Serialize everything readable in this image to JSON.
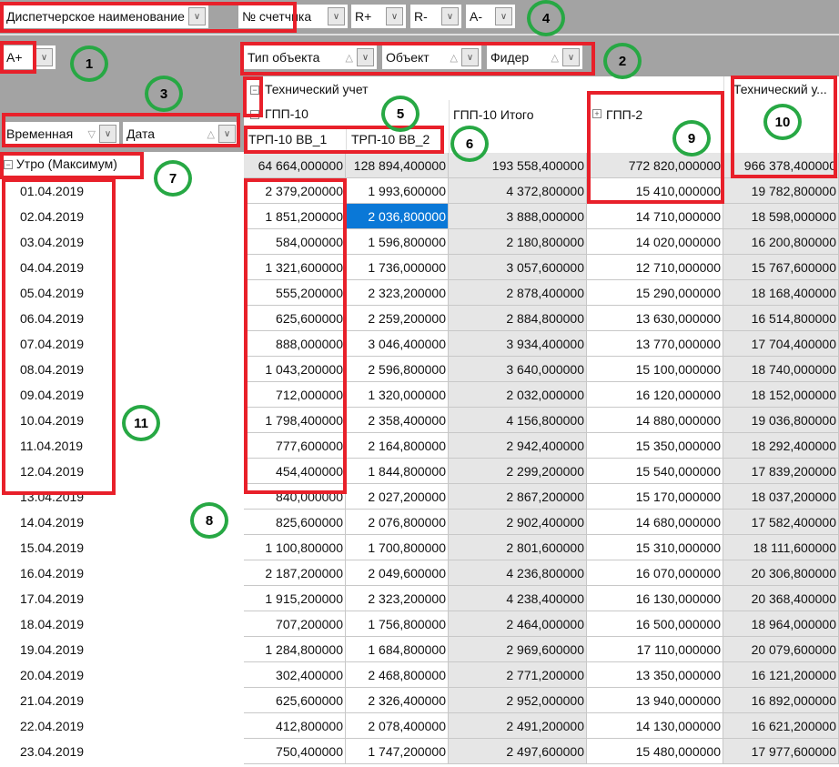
{
  "filter_fields": [
    {
      "label": "Диспетчерское наименование"
    },
    {
      "label": "№ счетчика"
    },
    {
      "label": "R+"
    },
    {
      "label": "R-"
    },
    {
      "label": "A-"
    }
  ],
  "data_field": {
    "label": "A+"
  },
  "column_fields": [
    {
      "label": "Тип объекта",
      "sort": "△"
    },
    {
      "label": "Объект",
      "sort": "△"
    },
    {
      "label": "Фидер",
      "sort": "△"
    }
  ],
  "row_fields": [
    {
      "label": "Временная",
      "sort": "▽"
    },
    {
      "label": "Дата",
      "sort": "△"
    }
  ],
  "column_headers": {
    "type": "Технический учет",
    "object": "ГПП-10",
    "object_total": "ГПП-10 Итого",
    "object2": "ГПП-2",
    "type_total": "Технический у...",
    "feeders": [
      "ТРП-10 ВВ_1",
      "ТРП-10 ВВ_2"
    ],
    "collapse": "−",
    "expand": "+"
  },
  "row_group": "Утро (Максимум)",
  "group_totals": [
    "64 664,000000",
    "128 894,400000",
    "193 558,400000",
    "772 820,000000",
    "966 378,400000"
  ],
  "rows": [
    {
      "date": "01.04.2019",
      "v": [
        "2 379,200000",
        "1 993,600000",
        "4 372,800000",
        "15 410,000000",
        "19 782,800000"
      ]
    },
    {
      "date": "02.04.2019",
      "v": [
        "1 851,200000",
        "2 036,800000",
        "3 888,000000",
        "14 710,000000",
        "18 598,000000"
      ]
    },
    {
      "date": "03.04.2019",
      "v": [
        "584,000000",
        "1 596,800000",
        "2 180,800000",
        "14 020,000000",
        "16 200,800000"
      ]
    },
    {
      "date": "04.04.2019",
      "v": [
        "1 321,600000",
        "1 736,000000",
        "3 057,600000",
        "12 710,000000",
        "15 767,600000"
      ]
    },
    {
      "date": "05.04.2019",
      "v": [
        "555,200000",
        "2 323,200000",
        "2 878,400000",
        "15 290,000000",
        "18 168,400000"
      ]
    },
    {
      "date": "06.04.2019",
      "v": [
        "625,600000",
        "2 259,200000",
        "2 884,800000",
        "13 630,000000",
        "16 514,800000"
      ]
    },
    {
      "date": "07.04.2019",
      "v": [
        "888,000000",
        "3 046,400000",
        "3 934,400000",
        "13 770,000000",
        "17 704,400000"
      ]
    },
    {
      "date": "08.04.2019",
      "v": [
        "1 043,200000",
        "2 596,800000",
        "3 640,000000",
        "15 100,000000",
        "18 740,000000"
      ]
    },
    {
      "date": "09.04.2019",
      "v": [
        "712,000000",
        "1 320,000000",
        "2 032,000000",
        "16 120,000000",
        "18 152,000000"
      ]
    },
    {
      "date": "10.04.2019",
      "v": [
        "1 798,400000",
        "2 358,400000",
        "4 156,800000",
        "14 880,000000",
        "19 036,800000"
      ]
    },
    {
      "date": "11.04.2019",
      "v": [
        "777,600000",
        "2 164,800000",
        "2 942,400000",
        "15 350,000000",
        "18 292,400000"
      ]
    },
    {
      "date": "12.04.2019",
      "v": [
        "454,400000",
        "1 844,800000",
        "2 299,200000",
        "15 540,000000",
        "17 839,200000"
      ]
    },
    {
      "date": "13.04.2019",
      "v": [
        "840,000000",
        "2 027,200000",
        "2 867,200000",
        "15 170,000000",
        "18 037,200000"
      ]
    },
    {
      "date": "14.04.2019",
      "v": [
        "825,600000",
        "2 076,800000",
        "2 902,400000",
        "14 680,000000",
        "17 582,400000"
      ]
    },
    {
      "date": "15.04.2019",
      "v": [
        "1 100,800000",
        "1 700,800000",
        "2 801,600000",
        "15 310,000000",
        "18 111,600000"
      ]
    },
    {
      "date": "16.04.2019",
      "v": [
        "2 187,200000",
        "2 049,600000",
        "4 236,800000",
        "16 070,000000",
        "20 306,800000"
      ]
    },
    {
      "date": "17.04.2019",
      "v": [
        "1 915,200000",
        "2 323,200000",
        "4 238,400000",
        "16 130,000000",
        "20 368,400000"
      ]
    },
    {
      "date": "18.04.2019",
      "v": [
        "707,200000",
        "1 756,800000",
        "2 464,000000",
        "16 500,000000",
        "18 964,000000"
      ]
    },
    {
      "date": "19.04.2019",
      "v": [
        "1 284,800000",
        "1 684,800000",
        "2 969,600000",
        "17 110,000000",
        "20 079,600000"
      ]
    },
    {
      "date": "20.04.2019",
      "v": [
        "302,400000",
        "2 468,800000",
        "2 771,200000",
        "13 350,000000",
        "16 121,200000"
      ]
    },
    {
      "date": "21.04.2019",
      "v": [
        "625,600000",
        "2 326,400000",
        "2 952,000000",
        "13 940,000000",
        "16 892,000000"
      ]
    },
    {
      "date": "22.04.2019",
      "v": [
        "412,800000",
        "2 078,400000",
        "2 491,200000",
        "14 130,000000",
        "16 621,200000"
      ]
    },
    {
      "date": "23.04.2019",
      "v": [
        "750,400000",
        "1 747,200000",
        "2 497,600000",
        "15 480,000000",
        "17 977,600000"
      ]
    }
  ],
  "selected_cell": {
    "row": 1,
    "col": 1
  },
  "annotations": [
    "1",
    "2",
    "3",
    "4",
    "5",
    "6",
    "7",
    "8",
    "9",
    "10",
    "11"
  ],
  "colors": {
    "annotation_box": "#e8202a",
    "annotation_circle": "#27a844",
    "selection": "#0a78d7",
    "shaded_column": "#e6e6e6"
  }
}
